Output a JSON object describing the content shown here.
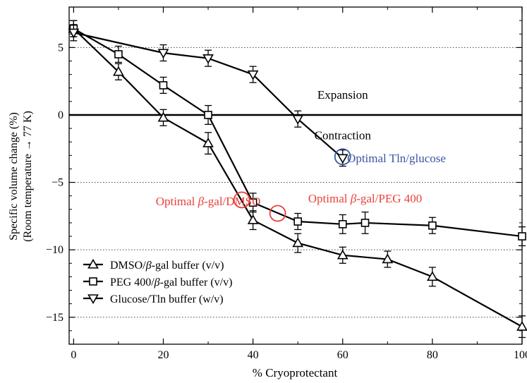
{
  "chart_data": {
    "type": "line",
    "title": "",
    "xlabel": "% Cryoprotectant",
    "ylabel_line1": "Specific volume change (%)",
    "ylabel_line2": "(Room temperature → 77 K)",
    "xlim": [
      -1,
      100
    ],
    "ylim": [
      -17,
      8
    ],
    "x_ticks": [
      0,
      20,
      40,
      60,
      80,
      100
    ],
    "y_ticks": [
      5,
      0,
      -5,
      -10,
      -15
    ],
    "grid": "dotted horizontal lines at y = 5, -5, -10, -15",
    "zero_line": 0,
    "legend_position": "bottom-left",
    "series": [
      {
        "name": "DMSO/β-gal buffer (v/v)",
        "name_prefix": "DMSO/",
        "name_greek": "β",
        "name_suffix": "-gal buffer (v/v)",
        "marker": "triangle-up",
        "x": [
          0,
          10,
          20,
          30,
          40,
          50,
          60,
          70,
          80,
          100
        ],
        "y": [
          6.4,
          3.2,
          -0.2,
          -2.1,
          -7.8,
          -9.5,
          -10.4,
          -10.7,
          -12.0,
          -15.7
        ],
        "err": [
          0.6,
          0.6,
          0.6,
          0.8,
          0.7,
          0.7,
          0.6,
          0.6,
          0.7,
          0.8
        ]
      },
      {
        "name": "PEG 400/β-gal buffer (v/v)",
        "name_prefix": "PEG 400/",
        "name_greek": "β",
        "name_suffix": "-gal buffer (v/v)",
        "marker": "square",
        "x": [
          0,
          10,
          20,
          30,
          40,
          50,
          60,
          65,
          80,
          100
        ],
        "y": [
          6.4,
          4.5,
          2.2,
          0.0,
          -6.5,
          -7.9,
          -8.1,
          -8.0,
          -8.2,
          -9.0
        ],
        "err": [
          0.6,
          0.6,
          0.6,
          0.7,
          0.7,
          0.6,
          0.7,
          0.8,
          0.6,
          0.7
        ]
      },
      {
        "name": "Glucose/Tln buffer (w/v)",
        "name_prefix": "Glucose/Tln buffer (w/v)",
        "name_greek": "",
        "name_suffix": "",
        "marker": "triangle-down",
        "x": [
          0,
          20,
          30,
          40,
          50,
          60
        ],
        "y": [
          6.1,
          4.6,
          4.2,
          3.0,
          -0.3,
          -3.2
        ],
        "err": [
          0.6,
          0.6,
          0.6,
          0.6,
          0.6,
          0.6
        ]
      }
    ],
    "annotations": [
      {
        "text": "Expansion",
        "x": 60,
        "y": 1.2,
        "color": "#000000"
      },
      {
        "text": "Contraction",
        "x": 60,
        "y": -1.8,
        "color": "#000000"
      },
      {
        "text_prefix": "Optimal ",
        "greek": "β",
        "text_suffix": "-gal/DMSO",
        "x": 30,
        "y": -6.7,
        "color": "#e8423a"
      },
      {
        "text_prefix": "Optimal ",
        "greek": "β",
        "text_suffix": "-gal/PEG 400",
        "x": 65,
        "y": -6.5,
        "color": "#e8423a"
      },
      {
        "text": "Optimal Tln/glucose",
        "x": 72,
        "y": -3.5,
        "color": "#3a55a4"
      }
    ],
    "highlight_circles": [
      {
        "x": 37.5,
        "y": -6.3,
        "color": "#e8423a"
      },
      {
        "x": 45.5,
        "y": -7.3,
        "color": "#e8423a"
      },
      {
        "x": 60,
        "y": -3.1,
        "color": "#3a55a4"
      }
    ]
  }
}
